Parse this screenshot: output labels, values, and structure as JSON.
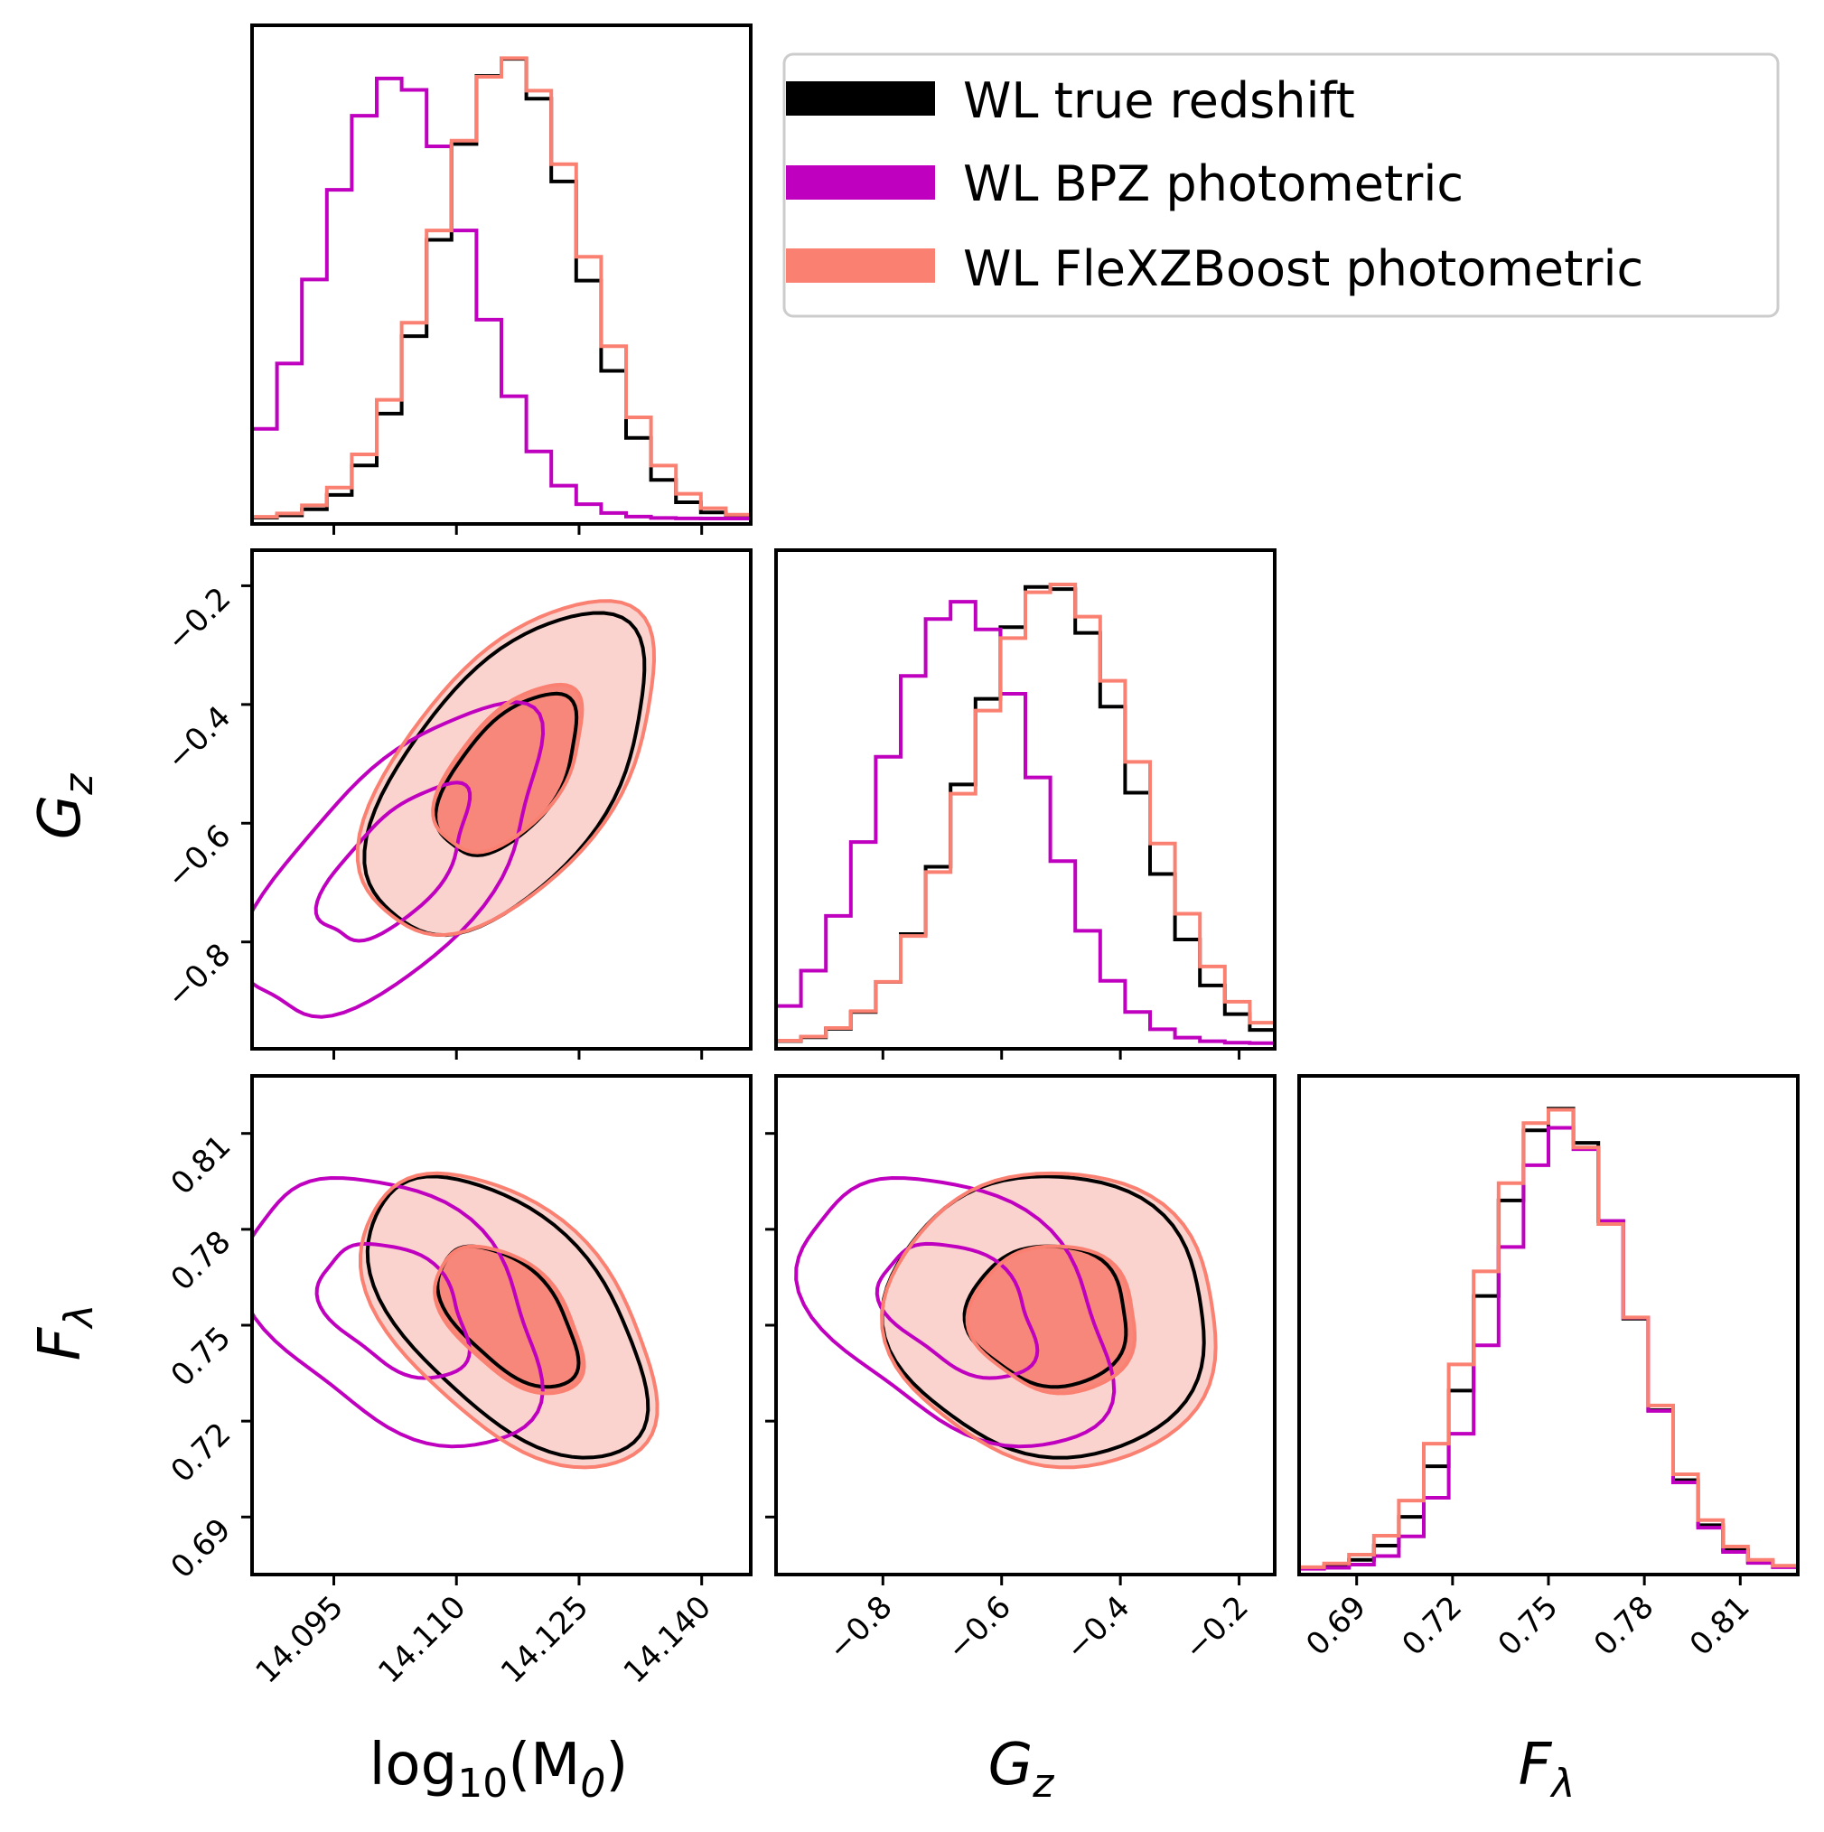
{
  "colors": {
    "true": "#000000",
    "bpz": "#bf00bf",
    "flex": "#fa8072",
    "flex_fill_outer": "#fbd3ce",
    "flex_fill_inner": "#f6877a"
  },
  "chart_data": {
    "type": "corner",
    "parameters": [
      {
        "key": "logM",
        "label_main": "log",
        "label_sub": "10",
        "label_rest": "(M",
        "label_sub2": "0",
        "label_end": ")",
        "range": [
          14.085,
          14.146
        ],
        "ticks": [
          "14.095",
          "14.110",
          "14.125",
          "14.140"
        ],
        "tick_values": [
          14.095,
          14.11,
          14.125,
          14.14
        ]
      },
      {
        "key": "Gz",
        "label_main": "G",
        "label_sub": "z",
        "range": [
          -0.98,
          -0.14
        ],
        "ticks": [
          "−0.8",
          "−0.6",
          "−0.4",
          "−0.2"
        ],
        "tick_values": [
          -0.8,
          -0.6,
          -0.4,
          -0.2
        ]
      },
      {
        "key": "Fl",
        "label_main": "F",
        "label_sub": "λ",
        "range": [
          0.672,
          0.828
        ],
        "ticks": [
          "0.69",
          "0.72",
          "0.75",
          "0.78",
          "0.81"
        ],
        "tick_values": [
          0.69,
          0.72,
          0.75,
          0.78,
          0.81
        ]
      }
    ],
    "series": [
      {
        "name": "WL true redshift",
        "color": "#000000",
        "centers": {
          "logM": 14.1164,
          "Gz": -0.52,
          "Fl": 0.753
        },
        "sigmas": {
          "logM": 0.0085,
          "Gz": 0.135,
          "Fl": 0.022
        },
        "corr": {
          "logM_Gz": 0.55,
          "logM_Fl": -0.55,
          "Gz_Fl": -0.05
        }
      },
      {
        "name": "WL BPZ photometric",
        "color": "#bf00bf",
        "centers": {
          "logM": 14.1026,
          "Gz": -0.67,
          "Fl": 0.755
        },
        "sigmas": {
          "logM": 0.009,
          "Gz": 0.13,
          "Fl": 0.021
        },
        "corr": {
          "logM_Gz": 0.65,
          "logM_Fl": -0.4,
          "Gz_Fl": -0.4
        }
      },
      {
        "name": "WL FleXZBoost photometric",
        "color": "#fa8072",
        "centers": {
          "logM": 14.1166,
          "Gz": -0.51,
          "Fl": 0.752
        },
        "sigmas": {
          "logM": 0.009,
          "Gz": 0.14,
          "Fl": 0.023
        },
        "corr": {
          "logM_Gz": 0.55,
          "logM_Fl": -0.5,
          "Gz_Fl": -0.05
        }
      }
    ],
    "contour_levels": [
      "39%",
      "86%"
    ],
    "legend_location": "top-right"
  }
}
